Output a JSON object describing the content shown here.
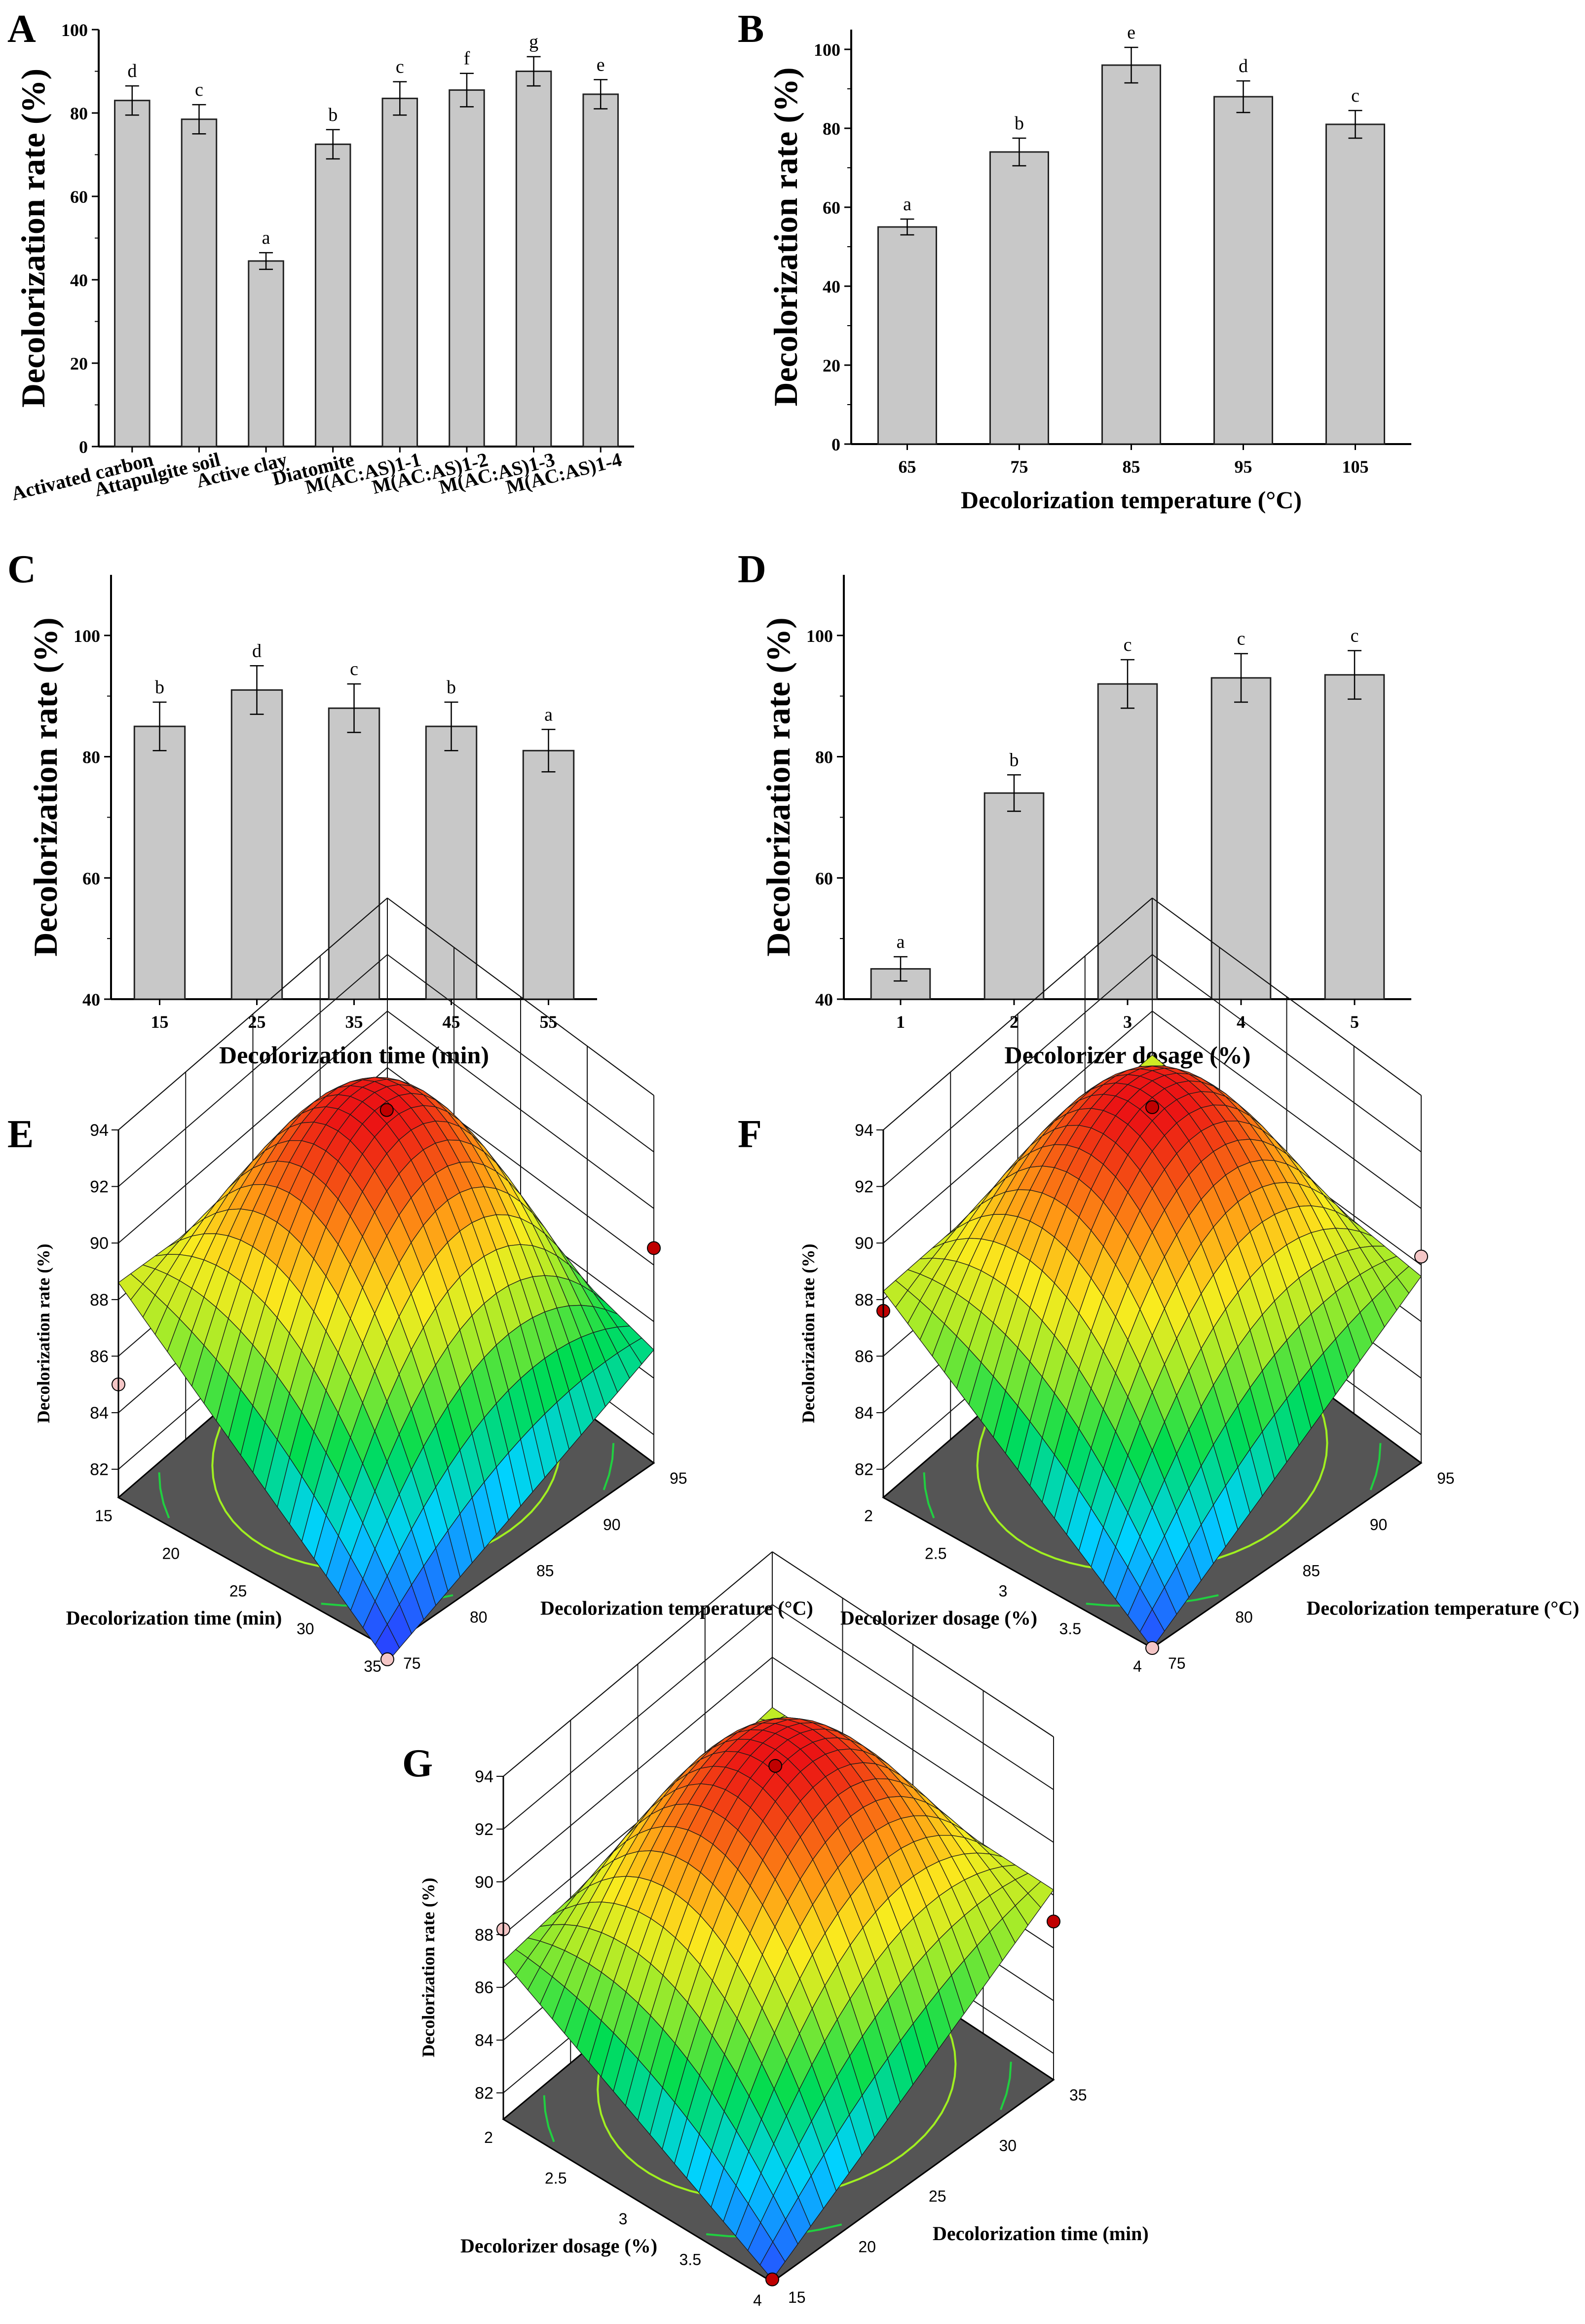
{
  "colors": {
    "bar_fill": "#c8c8c8",
    "bar_stroke": "#222222",
    "floor": "#555555",
    "point_red": "#c00000",
    "point_pink": "#f4c6c6"
  },
  "chart_data": [
    {
      "type": "bar",
      "panel": "A",
      "categories": [
        "Activated carbon",
        "Attapulgite soil",
        "Active clay",
        "Diatomite",
        "M(AC:AS)1-1",
        "M(AC:AS)1-2",
        "M(AC:AS)1-3",
        "M(AC:AS)1-4"
      ],
      "values": [
        83,
        78.5,
        44.5,
        72.5,
        83.5,
        85.5,
        90,
        84.5
      ],
      "errors": [
        3.5,
        3.5,
        2,
        3.5,
        4,
        4,
        3.5,
        3.5
      ],
      "letters": [
        "d",
        "c",
        "a",
        "b",
        "c",
        "f",
        "g",
        "e"
      ],
      "xlabel": "",
      "ylabel": "Decolorization rate (%)",
      "ylim": [
        0,
        100
      ],
      "yticks": [
        "0",
        "20",
        "40",
        "60",
        "80",
        "100"
      ],
      "ytick_values": [
        0,
        20,
        40,
        60,
        80,
        100
      ]
    },
    {
      "type": "bar",
      "panel": "B",
      "categories": [
        "65",
        "75",
        "85",
        "95",
        "105"
      ],
      "values": [
        55,
        74,
        96,
        88,
        81
      ],
      "errors": [
        2,
        3.5,
        4.5,
        4,
        3.5
      ],
      "letters": [
        "a",
        "b",
        "e",
        "d",
        "c"
      ],
      "xlabel": "Decolorization temperature (°C)",
      "ylabel": "Decolorization rate (%)",
      "ylim": [
        0,
        105
      ],
      "yticks": [
        "0",
        "20",
        "40",
        "60",
        "80",
        "100"
      ],
      "ytick_values": [
        0,
        20,
        40,
        60,
        80,
        100
      ]
    },
    {
      "type": "bar",
      "panel": "C",
      "categories": [
        "15",
        "25",
        "35",
        "45",
        "55"
      ],
      "values": [
        85,
        91,
        88,
        85,
        81
      ],
      "errors": [
        4,
        4,
        4,
        4,
        3.5
      ],
      "letters": [
        "b",
        "d",
        "c",
        "b",
        "a"
      ],
      "xlabel": "Decolorization time (min)",
      "ylabel": "Decolorization rate (%)",
      "ylim": [
        40,
        110
      ],
      "yticks": [
        "40",
        "60",
        "80",
        "100"
      ],
      "ytick_values": [
        40,
        60,
        80,
        100
      ]
    },
    {
      "type": "bar",
      "panel": "D",
      "categories": [
        "1",
        "2",
        "3",
        "4",
        "5"
      ],
      "values": [
        45,
        74,
        92,
        93,
        93.5
      ],
      "errors": [
        2,
        3,
        4,
        4,
        4
      ],
      "letters": [
        "a",
        "b",
        "c",
        "c",
        "c"
      ],
      "xlabel": "Decolorizer dosage (%)",
      "ylabel": "Decolorization rate (%)",
      "ylim": [
        40,
        110
      ],
      "yticks": [
        "40",
        "60",
        "80",
        "100"
      ],
      "ytick_values": [
        40,
        60,
        80,
        100
      ]
    },
    {
      "type": "surface3d",
      "panel": "E",
      "zlabel": "Decolorization rate (%)",
      "zticks": [
        "82",
        "84",
        "86",
        "88",
        "90",
        "92",
        "94"
      ],
      "zrange": [
        81,
        94
      ],
      "x_axis": {
        "label": "Decolorization time (min)",
        "ticks": [
          "15",
          "20",
          "25",
          "30",
          "35"
        ]
      },
      "y_axis": {
        "label": "Decolorization temperature (°C)",
        "ticks": [
          "75",
          "80",
          "85",
          "90",
          "95"
        ]
      },
      "peak": 93.2,
      "edge_left": 88.6,
      "edge_right": 85.0,
      "edge_min": 80.5,
      "points": [
        {
          "u": 0.55,
          "v": 0.55,
          "z": 93.0,
          "kind": "red"
        },
        {
          "u": 0.0,
          "v": 1.0,
          "z": 88.6,
          "kind": "red"
        },
        {
          "u": 1.0,
          "v": 0.0,
          "z": 85.0,
          "kind": "pink"
        },
        {
          "u": 0.0,
          "v": 0.0,
          "z": 80.6,
          "kind": "pink"
        }
      ]
    },
    {
      "type": "surface3d",
      "panel": "F",
      "zlabel": "Decolorization rate (%)",
      "zticks": [
        "82",
        "84",
        "86",
        "88",
        "90",
        "92",
        "94"
      ],
      "zrange": [
        81,
        94
      ],
      "x_axis": {
        "label": "Decolorizer dosage (%)",
        "ticks": [
          "2",
          "2.5",
          "3",
          "3.5",
          "4"
        ]
      },
      "y_axis": {
        "label": "Decolorization temperature (°C)",
        "ticks": [
          "75",
          "80",
          "85",
          "90",
          "95"
        ]
      },
      "peak": 93.3,
      "edge_left": 88.3,
      "edge_right": 87.6,
      "edge_min": 81.0,
      "points": [
        {
          "u": 0.55,
          "v": 0.55,
          "z": 93.1,
          "kind": "red"
        },
        {
          "u": 0.0,
          "v": 1.0,
          "z": 88.3,
          "kind": "pink"
        },
        {
          "u": 1.0,
          "v": 0.0,
          "z": 87.6,
          "kind": "red"
        },
        {
          "u": 0.0,
          "v": 0.0,
          "z": 81.0,
          "kind": "pink"
        }
      ]
    },
    {
      "type": "surface3d",
      "panel": "G",
      "zlabel": "Decolorization rate (%)",
      "zticks": [
        "82",
        "84",
        "86",
        "88",
        "90",
        "92",
        "94"
      ],
      "zrange": [
        81,
        94
      ],
      "x_axis": {
        "label": "Decolorizer dosage (%)",
        "ticks": [
          "2",
          "2.5",
          "3",
          "3.5",
          "4"
        ]
      },
      "y_axis": {
        "label": "Decolorization time (min)",
        "ticks": [
          "15",
          "20",
          "25",
          "30",
          "35"
        ]
      },
      "peak": 93.2,
      "edge_left": 87.0,
      "edge_right": 88.2,
      "edge_min": 81.1,
      "points": [
        {
          "u": 0.55,
          "v": 0.55,
          "z": 92.7,
          "kind": "red"
        },
        {
          "u": 0.0,
          "v": 1.0,
          "z": 87.0,
          "kind": "red"
        },
        {
          "u": 1.0,
          "v": 0.0,
          "z": 88.2,
          "kind": "pink"
        },
        {
          "u": 0.0,
          "v": 0.0,
          "z": 81.1,
          "kind": "red"
        }
      ]
    }
  ]
}
